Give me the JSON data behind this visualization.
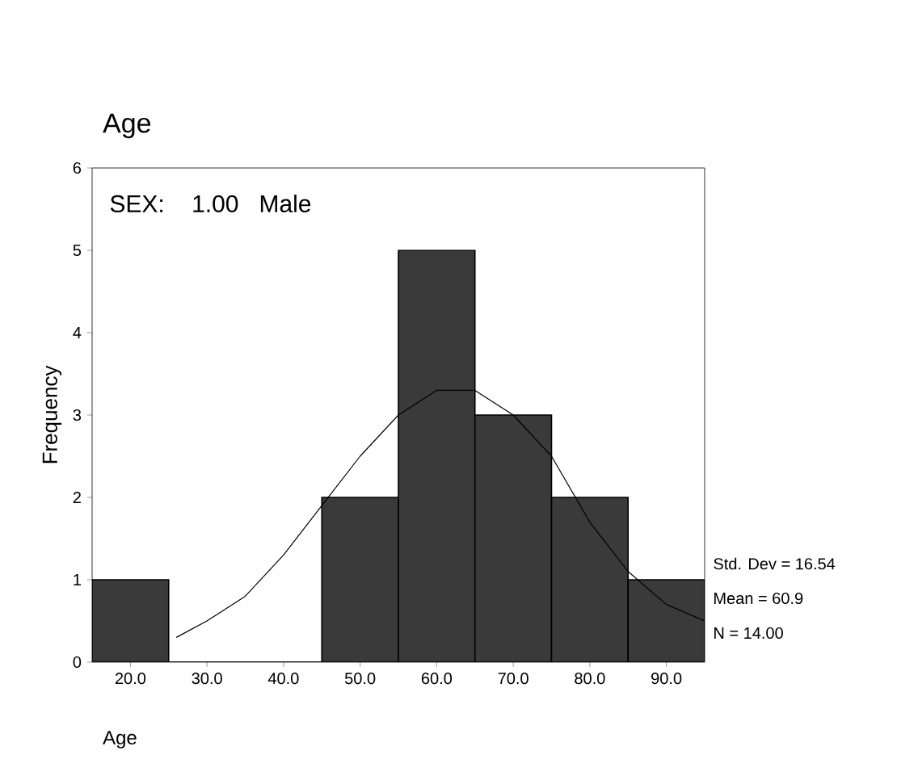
{
  "chart_data": {
    "type": "histogram",
    "title": "Age",
    "subtitle": "SEX:    1.00   Male",
    "xlabel": "Age",
    "ylabel": "Frequency",
    "bins": [
      15,
      25,
      35,
      45,
      55,
      65,
      75,
      85,
      95
    ],
    "values": [
      1,
      0,
      0,
      2,
      5,
      3,
      2,
      1
    ],
    "color": "#3a3a3a",
    "series": [
      {
        "type": "line",
        "color": "#000000",
        "x": [
          26,
          30,
          35,
          40,
          45,
          50,
          55,
          60,
          65,
          70,
          75,
          80,
          85,
          90,
          95
        ],
        "values": [
          0.3,
          0.5,
          0.8,
          1.3,
          1.9,
          2.5,
          3.0,
          3.3,
          3.3,
          3.0,
          2.5,
          1.7,
          1.1,
          0.7,
          0.5
        ]
      }
    ],
    "xlim": [
      15,
      95
    ],
    "ylim": [
      0,
      6
    ],
    "xticks": [
      {
        "value": 20,
        "label": "20.0"
      },
      {
        "value": 30,
        "label": "30.0"
      },
      {
        "value": 40,
        "label": "40.0"
      },
      {
        "value": 50,
        "label": "50.0"
      },
      {
        "value": 60,
        "label": "60.0"
      },
      {
        "value": 70,
        "label": "70.0"
      },
      {
        "value": 80,
        "label": "80.0"
      },
      {
        "value": 90,
        "label": "90.0"
      }
    ],
    "yticks": [
      0,
      1,
      2,
      3,
      4,
      5,
      6
    ],
    "annotations": [
      "Std. Dev = 16.54",
      "Mean = 60.9",
      "N = 14.00"
    ],
    "grid": false
  }
}
